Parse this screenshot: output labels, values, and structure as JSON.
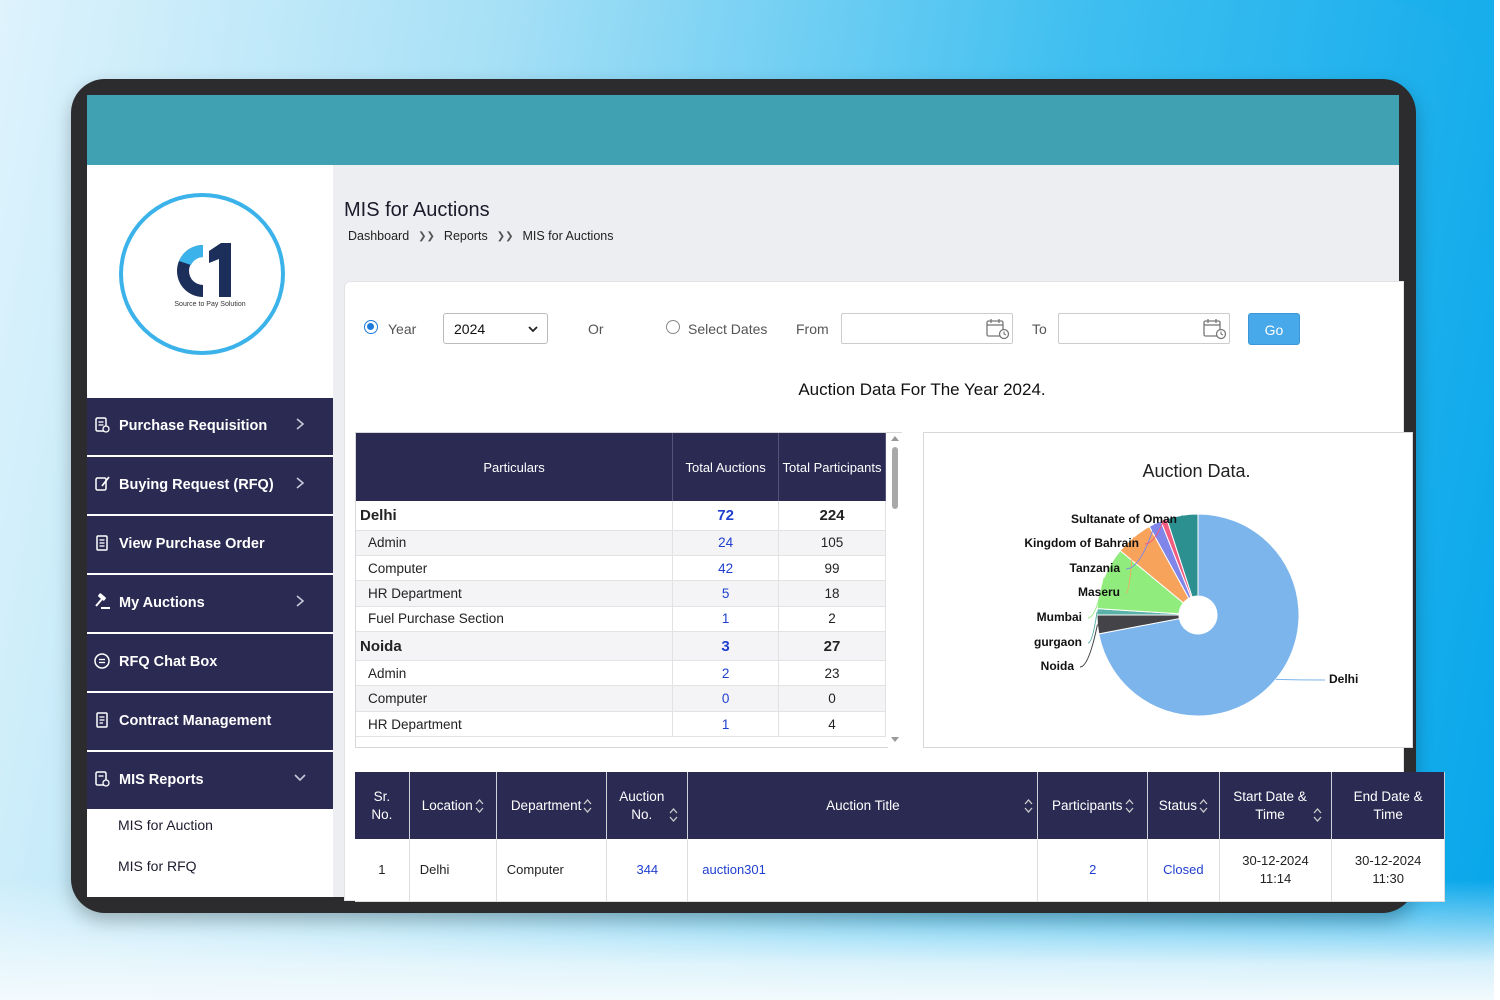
{
  "sidebar": {
    "logo_tagline": "Source to Pay Solution",
    "items": [
      {
        "label": "Purchase Requisition",
        "icon": "requisition-icon",
        "has_chevron": true
      },
      {
        "label": "Buying Request (RFQ)",
        "icon": "rfq-icon",
        "has_chevron": true
      },
      {
        "label": "View Purchase Order",
        "icon": "purchase-order-icon",
        "has_chevron": false
      },
      {
        "label": "My Auctions",
        "icon": "gavel-icon",
        "has_chevron": true
      },
      {
        "label": "RFQ Chat Box",
        "icon": "chat-icon",
        "has_chevron": false
      },
      {
        "label": "Contract Management",
        "icon": "contract-icon",
        "has_chevron": false
      },
      {
        "label": "MIS Reports",
        "icon": "report-icon",
        "has_chevron": true,
        "expanded": true
      }
    ],
    "sub_items": [
      {
        "label": "MIS for Auction"
      },
      {
        "label": "MIS for RFQ"
      }
    ]
  },
  "header": {
    "title": "MIS for Auctions",
    "breadcrumb": [
      "Dashboard",
      "Reports",
      "MIS for Auctions"
    ]
  },
  "filters": {
    "year_label": "Year",
    "year_value": "2024",
    "or_label": "Or",
    "select_dates_label": "Select Dates",
    "from_label": "From",
    "to_label": "To",
    "go_label": "Go"
  },
  "summary": {
    "heading": "Auction Data For The Year 2024.",
    "columns": [
      "Particulars",
      "Total Auctions",
      "Total Participants"
    ],
    "rows": [
      {
        "particular": "Delhi",
        "auctions": "72",
        "participants": "224",
        "group": true
      },
      {
        "particular": "Admin",
        "auctions": "24",
        "participants": "105"
      },
      {
        "particular": "Computer",
        "auctions": "42",
        "participants": "99"
      },
      {
        "particular": "HR Department",
        "auctions": "5",
        "participants": "18"
      },
      {
        "particular": "Fuel Purchase Section",
        "auctions": "1",
        "participants": "2"
      },
      {
        "particular": "Noida",
        "auctions": "3",
        "participants": "27",
        "group": true
      },
      {
        "particular": "Admin",
        "auctions": "2",
        "participants": "23"
      },
      {
        "particular": "Computer",
        "auctions": "0",
        "participants": "0"
      },
      {
        "particular": "HR Department",
        "auctions": "1",
        "participants": "4"
      }
    ]
  },
  "chart_data": {
    "type": "pie",
    "title": "Auction Data.",
    "donut": true,
    "slices": [
      {
        "label": "Delhi",
        "value": 72,
        "color": "#7cb5ec"
      },
      {
        "label": "Noida",
        "value": 3,
        "color": "#434348"
      },
      {
        "label": "gurgaon",
        "value": 1,
        "color": "#5ab1a8"
      },
      {
        "label": "Mumbai",
        "value": 10,
        "color": "#90ed7d"
      },
      {
        "label": "Maseru",
        "value": 6,
        "color": "#f7a35c"
      },
      {
        "label": "Tanzania",
        "value": 2,
        "color": "#8085e9"
      },
      {
        "label": "Kingdom of Bahrain",
        "value": 1,
        "color": "#f15c80"
      },
      {
        "label": "Sultanate of Oman",
        "value": 5,
        "color": "#2b908f"
      }
    ]
  },
  "detail": {
    "columns": [
      "Sr. No.",
      "Location",
      "Department",
      "Auction No.",
      "Auction Title",
      "Participants",
      "Status",
      "Start Date & Time",
      "End Date & Time"
    ],
    "rows": [
      {
        "sr": "1",
        "location": "Delhi",
        "department": "Computer",
        "auction_no": "344",
        "title": "auction301",
        "participants": "2",
        "status": "Closed",
        "start_date": "30-12-2024",
        "start_time": "11:14",
        "end_date": "30-12-2024",
        "end_time": "11:30"
      }
    ]
  }
}
